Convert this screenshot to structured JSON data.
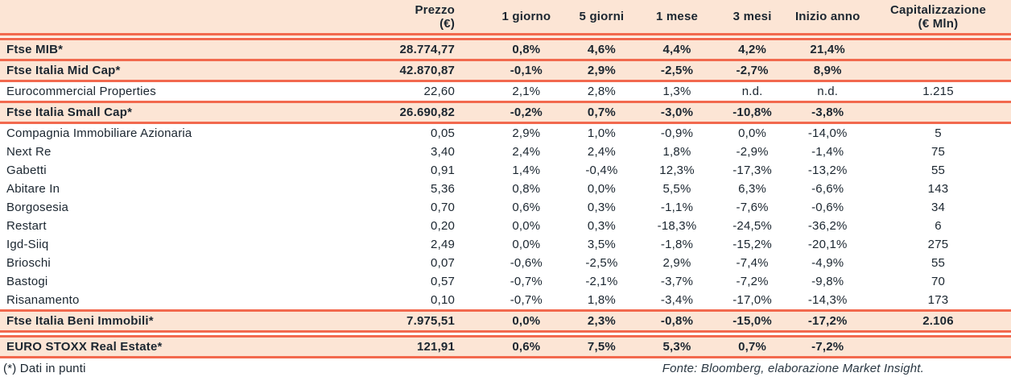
{
  "table": {
    "columns": [
      {
        "label": "",
        "sublabel": ""
      },
      {
        "label": "Prezzo",
        "sublabel": "(€)"
      },
      {
        "label": "1 giorno",
        "sublabel": ""
      },
      {
        "label": "5 giorni",
        "sublabel": ""
      },
      {
        "label": "1 mese",
        "sublabel": ""
      },
      {
        "label": "3 mesi",
        "sublabel": ""
      },
      {
        "label": "Inizio anno",
        "sublabel": ""
      },
      {
        "label": "Capitalizzazione",
        "sublabel": "(€ Mln)"
      }
    ],
    "rows": [
      {
        "name": "Ftse MIB*",
        "band": true,
        "rule_below": "single",
        "values": [
          "28.774,77",
          "0,8%",
          "4,6%",
          "4,4%",
          "4,2%",
          "21,4%",
          ""
        ]
      },
      {
        "name": "Ftse Italia Mid Cap*",
        "band": true,
        "rule_below": "single",
        "values": [
          "42.870,87",
          "-0,1%",
          "2,9%",
          "-2,5%",
          "-2,7%",
          "8,9%",
          ""
        ]
      },
      {
        "name": "Eurocommercial Properties",
        "band": false,
        "rule_below": "single",
        "values": [
          "22,60",
          "2,1%",
          "2,8%",
          "1,3%",
          "n.d.",
          "n.d.",
          "1.215"
        ]
      },
      {
        "name": "Ftse Italia Small Cap*",
        "band": true,
        "rule_below": "single",
        "values": [
          "26.690,82",
          "-0,2%",
          "0,7%",
          "-3,0%",
          "-10,8%",
          "-3,8%",
          ""
        ]
      },
      {
        "name": "Compagnia Immobiliare Azionaria",
        "band": false,
        "rule_below": "none",
        "values": [
          "0,05",
          "2,9%",
          "1,0%",
          "-0,9%",
          "0,0%",
          "-14,0%",
          "5"
        ]
      },
      {
        "name": "Next Re",
        "band": false,
        "rule_below": "none",
        "values": [
          "3,40",
          "2,4%",
          "2,4%",
          "1,8%",
          "-2,9%",
          "-1,4%",
          "75"
        ]
      },
      {
        "name": "Gabetti",
        "band": false,
        "rule_below": "none",
        "values": [
          "0,91",
          "1,4%",
          "-0,4%",
          "12,3%",
          "-17,3%",
          "-13,2%",
          "55"
        ]
      },
      {
        "name": "Abitare In",
        "band": false,
        "rule_below": "none",
        "values": [
          "5,36",
          "0,8%",
          "0,0%",
          "5,5%",
          "6,3%",
          "-6,6%",
          "143"
        ]
      },
      {
        "name": "Borgosesia",
        "band": false,
        "rule_below": "none",
        "values": [
          "0,70",
          "0,6%",
          "0,3%",
          "-1,1%",
          "-7,6%",
          "-0,6%",
          "34"
        ]
      },
      {
        "name": "Restart",
        "band": false,
        "rule_below": "none",
        "values": [
          "0,20",
          "0,0%",
          "0,3%",
          "-18,3%",
          "-24,5%",
          "-36,2%",
          "6"
        ]
      },
      {
        "name": "Igd-Siiq",
        "band": false,
        "rule_below": "none",
        "values": [
          "2,49",
          "0,0%",
          "3,5%",
          "-1,8%",
          "-15,2%",
          "-20,1%",
          "275"
        ]
      },
      {
        "name": "Brioschi",
        "band": false,
        "rule_below": "none",
        "values": [
          "0,07",
          "-0,6%",
          "-2,5%",
          "2,9%",
          "-7,4%",
          "-4,9%",
          "55"
        ]
      },
      {
        "name": "Bastogi",
        "band": false,
        "rule_below": "none",
        "values": [
          "0,57",
          "-0,7%",
          "-2,1%",
          "-3,7%",
          "-7,2%",
          "-9,8%",
          "70"
        ]
      },
      {
        "name": "Risanamento",
        "band": false,
        "rule_below": "single",
        "values": [
          "0,10",
          "-0,7%",
          "1,8%",
          "-3,4%",
          "-17,0%",
          "-14,3%",
          "173"
        ]
      },
      {
        "name": "Ftse Italia Beni Immobili*",
        "band": true,
        "rule_below": "double",
        "values": [
          "7.975,51",
          "0,0%",
          "2,3%",
          "-0,8%",
          "-15,0%",
          "-17,2%",
          "2.106"
        ]
      },
      {
        "name": "EURO STOXX Real Estate*",
        "band": true,
        "rule_below": "single",
        "values": [
          "121,91",
          "0,6%",
          "7,5%",
          "5,3%",
          "0,7%",
          "-7,2%",
          ""
        ]
      }
    ]
  },
  "footer": {
    "note": "(*) Dati in punti",
    "source": "Fonte: Bloomberg, elaborazione Market Insight."
  },
  "colors": {
    "band_background": "#fce5d5",
    "rule_line": "#f2694e",
    "text": "#1b2630"
  }
}
